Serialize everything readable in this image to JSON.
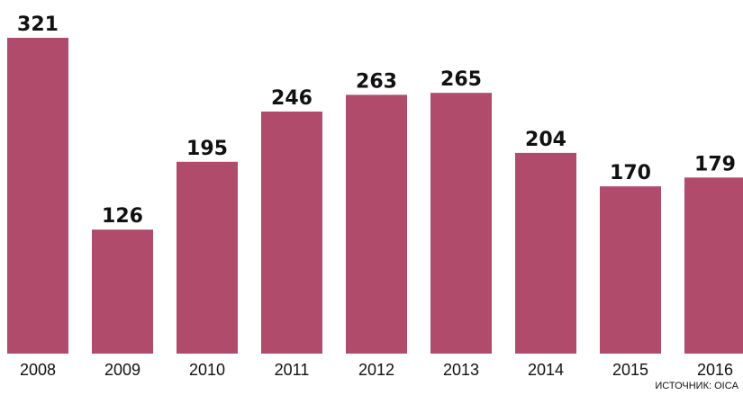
{
  "chart_data": {
    "type": "bar",
    "categories": [
      "2008",
      "2009",
      "2010",
      "2011",
      "2012",
      "2013",
      "2014",
      "2015",
      "2016"
    ],
    "values": [
      321,
      126,
      195,
      246,
      263,
      265,
      204,
      170,
      179
    ],
    "title": "",
    "xlabel": "",
    "ylabel": "",
    "ylim": [
      0,
      321
    ],
    "grid": false,
    "legend": "none",
    "bar_color": "#b04b6b",
    "source": "ИСТОЧНИК: OICA"
  }
}
